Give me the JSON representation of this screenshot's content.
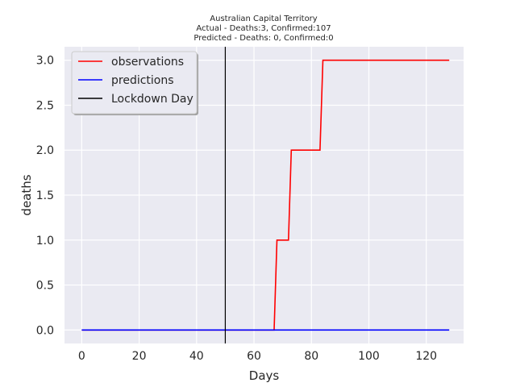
{
  "chart_data": {
    "type": "line",
    "title_lines": [
      "Australian Capital Territory",
      "Actual - Deaths:3, Confirmed:107",
      "Predicted - Deaths: 0, Confirmed:0"
    ],
    "xlabel": "Days",
    "ylabel": "deaths",
    "xlim": [
      -6,
      133
    ],
    "ylim": [
      -0.15,
      3.15
    ],
    "xticks": [
      0,
      20,
      40,
      60,
      80,
      100,
      120
    ],
    "yticks": [
      0.0,
      0.5,
      1.0,
      1.5,
      2.0,
      2.5,
      3.0
    ],
    "ytick_labels": [
      "0.0",
      "0.5",
      "1.0",
      "1.5",
      "2.0",
      "2.5",
      "3.0"
    ],
    "grid": true,
    "legend_placement": "upper-left",
    "background_color": "#eaeaf2",
    "series": [
      {
        "name": "observations",
        "color": "#ff0000",
        "x": [
          0,
          67,
          68,
          72,
          73,
          83,
          84,
          128
        ],
        "y": [
          0,
          0,
          1,
          1,
          2,
          2,
          3,
          3
        ]
      },
      {
        "name": "predictions",
        "color": "#0000ff",
        "x": [
          0,
          128
        ],
        "y": [
          0,
          0
        ]
      }
    ],
    "vlines": [
      {
        "name": "Lockdown Day",
        "x": 50,
        "color": "#000000"
      }
    ]
  }
}
